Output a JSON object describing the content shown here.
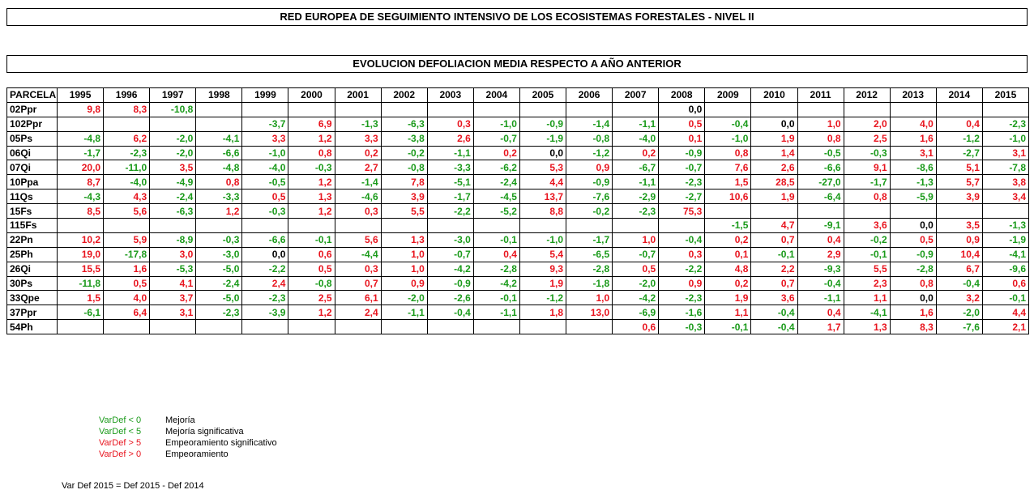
{
  "header": {
    "title": "RED EUROPEA DE SEGUIMIENTO INTENSIVO DE LOS ECOSISTEMAS FORESTALES - NIVEL II",
    "subtitle": "EVOLUCION DEFOLIACION MEDIA RESPECTO A AÑO ANTERIOR"
  },
  "table": {
    "columns": [
      "PARCELA",
      "1995",
      "1996",
      "1997",
      "1998",
      "1999",
      "2000",
      "2001",
      "2002",
      "2003",
      "2004",
      "2005",
      "2006",
      "2007",
      "2008",
      "2009",
      "2010",
      "2011",
      "2012",
      "2013",
      "2014",
      "2015"
    ],
    "negative_color": "#1a9a1a",
    "positive_color": "#e8141e",
    "zero_color": "#000000",
    "rows": [
      [
        "02Ppr",
        "9,8",
        "8,3",
        "-10,8",
        null,
        null,
        null,
        null,
        null,
        null,
        null,
        null,
        null,
        null,
        "0,0",
        null,
        null,
        null,
        null,
        null,
        null,
        null
      ],
      [
        "102Ppr",
        null,
        null,
        null,
        null,
        "-3,7",
        "6,9",
        "-1,3",
        "-6,3",
        "0,3",
        "-1,0",
        "-0,9",
        "-1,4",
        "-1,1",
        "0,5",
        "-0,4",
        "0,0",
        "1,0",
        "2,0",
        "4,0",
        "0,4",
        "-2,3"
      ],
      [
        "05Ps",
        "-4,8",
        "6,2",
        "-2,0",
        "-4,1",
        "3,3",
        "1,2",
        "3,3",
        "-3,8",
        "2,6",
        "-0,7",
        "-1,9",
        "-0,8",
        "-4,0",
        "0,1",
        "-1,0",
        "1,9",
        "0,8",
        "2,5",
        "1,6",
        "-1,2",
        "-1,0"
      ],
      [
        "06Qi",
        "-1,7",
        "-2,3",
        "-2,0",
        "-6,6",
        "-1,0",
        "0,8",
        "0,2",
        "-0,2",
        "-1,1",
        "0,2",
        "0,0",
        "-1,2",
        "0,2",
        "-0,9",
        "0,8",
        "1,4",
        "-0,5",
        "-0,3",
        "3,1",
        "-2,7",
        "3,1"
      ],
      [
        "07Qi",
        "20,0",
        "-11,0",
        "3,5",
        "-4,8",
        "-4,0",
        "-0,3",
        "2,7",
        "-0,8",
        "-3,3",
        "-6,2",
        "5,3",
        "0,9",
        "-6,7",
        "-0,7",
        "7,6",
        "2,6",
        "-6,6",
        "9,1",
        "-8,6",
        "5,1",
        "-7,8"
      ],
      [
        "10Ppa",
        "8,7",
        "-4,0",
        "-4,9",
        "0,8",
        "-0,5",
        "1,2",
        "-1,4",
        "7,8",
        "-5,1",
        "-2,4",
        "4,4",
        "-0,9",
        "-1,1",
        "-2,3",
        "1,5",
        "28,5",
        "-27,0",
        "-1,7",
        "-1,3",
        "5,7",
        "3,8"
      ],
      [
        "11Qs",
        "-4,3",
        "4,3",
        "-2,4",
        "-3,3",
        "0,5",
        "1,3",
        "-4,6",
        "3,9",
        "-1,7",
        "-4,5",
        "13,7",
        "-7,6",
        "-2,9",
        "-2,7",
        "10,6",
        "1,9",
        "-6,4",
        "0,8",
        "-5,9",
        "3,9",
        "3,4"
      ],
      [
        "15Fs",
        "8,5",
        "5,6",
        "-6,3",
        "1,2",
        "-0,3",
        "1,2",
        "0,3",
        "5,5",
        "-2,2",
        "-5,2",
        "8,8",
        "-0,2",
        "-2,3",
        "75,3",
        null,
        null,
        null,
        null,
        null,
        null,
        null
      ],
      [
        "115Fs",
        null,
        null,
        null,
        null,
        null,
        null,
        null,
        null,
        null,
        null,
        null,
        null,
        null,
        null,
        "-1,5",
        "4,7",
        "-9,1",
        "3,6",
        "0,0",
        "3,5",
        "-1,3"
      ],
      [
        "22Pn",
        "10,2",
        "5,9",
        "-8,9",
        "-0,3",
        "-6,6",
        "-0,1",
        "5,6",
        "1,3",
        "-3,0",
        "-0,1",
        "-1,0",
        "-1,7",
        "1,0",
        "-0,4",
        "0,2",
        "0,7",
        "0,4",
        "-0,2",
        "0,5",
        "0,9",
        "-1,9"
      ],
      [
        "25Ph",
        "19,0",
        "-17,8",
        "3,0",
        "-3,0",
        "0,0",
        "0,6",
        "-4,4",
        "1,0",
        "-0,7",
        "0,4",
        "5,4",
        "-6,5",
        "-0,7",
        "0,3",
        "0,1",
        "-0,1",
        "2,9",
        "-0,1",
        "-0,9",
        "10,4",
        "-4,1"
      ],
      [
        "26Qi",
        "15,5",
        "1,6",
        "-5,3",
        "-5,0",
        "-2,2",
        "0,5",
        "0,3",
        "1,0",
        "-4,2",
        "-2,8",
        "9,3",
        "-2,8",
        "0,5",
        "-2,2",
        "4,8",
        "2,2",
        "-9,3",
        "5,5",
        "-2,8",
        "6,7",
        "-9,6"
      ],
      [
        "30Ps",
        "-11,8",
        "0,5",
        "4,1",
        "-2,4",
        "2,4",
        "-0,8",
        "0,7",
        "0,9",
        "-0,9",
        "-4,2",
        "1,9",
        "-1,8",
        "-2,0",
        "0,9",
        "0,2",
        "0,7",
        "-0,4",
        "2,3",
        "0,8",
        "-0,4",
        "0,6"
      ],
      [
        "33Qpe",
        "1,5",
        "4,0",
        "3,7",
        "-5,0",
        "-2,3",
        "2,5",
        "6,1",
        "-2,0",
        "-2,6",
        "-0,1",
        "-1,2",
        "1,0",
        "-4,2",
        "-2,3",
        "1,9",
        "3,6",
        "-1,1",
        "1,1",
        "0,0",
        "3,2",
        "-0,1"
      ],
      [
        "37Ppr",
        "-6,1",
        "6,4",
        "3,1",
        "-2,3",
        "-3,9",
        "1,2",
        "2,4",
        "-1,1",
        "-0,4",
        "-1,1",
        "1,8",
        "13,0",
        "-6,9",
        "-1,6",
        "1,1",
        "-0,4",
        "0,4",
        "-4,1",
        "1,6",
        "-2,0",
        "4,4"
      ],
      [
        "54Ph",
        null,
        null,
        null,
        null,
        null,
        null,
        null,
        null,
        null,
        null,
        null,
        null,
        "0,6",
        "-0,3",
        "-0,1",
        "-0,4",
        "1,7",
        "1,3",
        "8,3",
        "-7,6",
        "2,1"
      ]
    ]
  },
  "legend": [
    {
      "key": "VarDef < 0",
      "label": "Mejoría",
      "color": "#1a9a1a"
    },
    {
      "key": "VarDef < 5",
      "label": "Mejoría significativa",
      "color": "#1a9a1a"
    },
    {
      "key": "VarDef > 5",
      "label": "Empeoramiento significativo",
      "color": "#e8141e"
    },
    {
      "key": "VarDef > 0",
      "label": "Empeoramiento",
      "color": "#e8141e"
    }
  ],
  "footer": "Var Def 2015 = Def 2015 - Def 2014"
}
